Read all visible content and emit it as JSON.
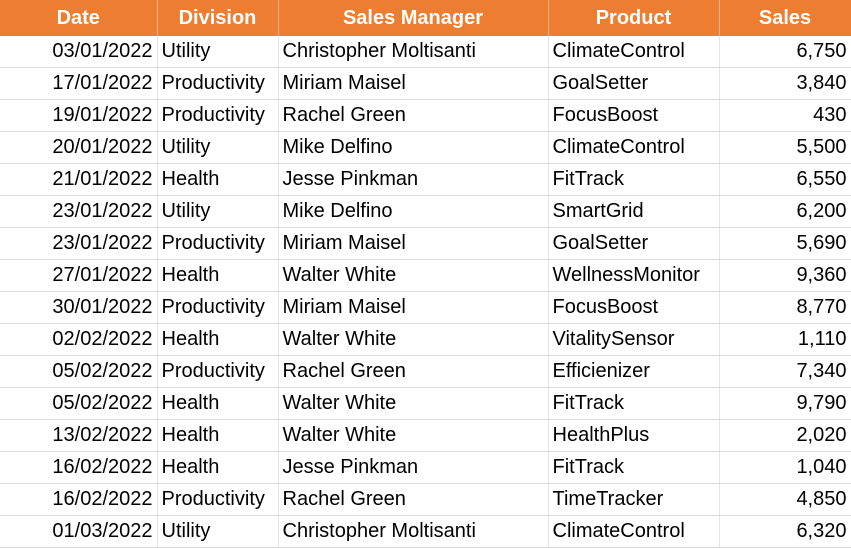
{
  "table": {
    "header": [
      "Date",
      "Division",
      "Sales Manager",
      "Product",
      "Sales"
    ],
    "rows": [
      [
        "03/01/2022",
        "Utility",
        "Christopher Moltisanti",
        "ClimateControl",
        "6,750"
      ],
      [
        "17/01/2022",
        "Productivity",
        "Miriam Maisel",
        "GoalSetter",
        "3,840"
      ],
      [
        "19/01/2022",
        "Productivity",
        "Rachel Green",
        "FocusBoost",
        "430"
      ],
      [
        "20/01/2022",
        "Utility",
        "Mike Delfino",
        "ClimateControl",
        "5,500"
      ],
      [
        "21/01/2022",
        "Health",
        "Jesse Pinkman",
        "FitTrack",
        "6,550"
      ],
      [
        "23/01/2022",
        "Utility",
        "Mike Delfino",
        "SmartGrid",
        "6,200"
      ],
      [
        "23/01/2022",
        "Productivity",
        "Miriam Maisel",
        "GoalSetter",
        "5,690"
      ],
      [
        "27/01/2022",
        "Health",
        "Walter White",
        "WellnessMonitor",
        "9,360"
      ],
      [
        "30/01/2022",
        "Productivity",
        "Miriam Maisel",
        "FocusBoost",
        "8,770"
      ],
      [
        "02/02/2022",
        "Health",
        "Walter White",
        "VitalitySensor",
        "1,110"
      ],
      [
        "05/02/2022",
        "Productivity",
        "Rachel Green",
        "Efficienizer",
        "7,340"
      ],
      [
        "05/02/2022",
        "Health",
        "Walter White",
        "FitTrack",
        "9,790"
      ],
      [
        "13/02/2022",
        "Health",
        "Walter White",
        "HealthPlus",
        "2,020"
      ],
      [
        "16/02/2022",
        "Health",
        "Jesse Pinkman",
        "FitTrack",
        "1,040"
      ],
      [
        "16/02/2022",
        "Productivity",
        "Rachel Green",
        "TimeTracker",
        "4,850"
      ],
      [
        "01/03/2022",
        "Utility",
        "Christopher Moltisanti",
        "ClimateControl",
        "6,320"
      ]
    ]
  }
}
